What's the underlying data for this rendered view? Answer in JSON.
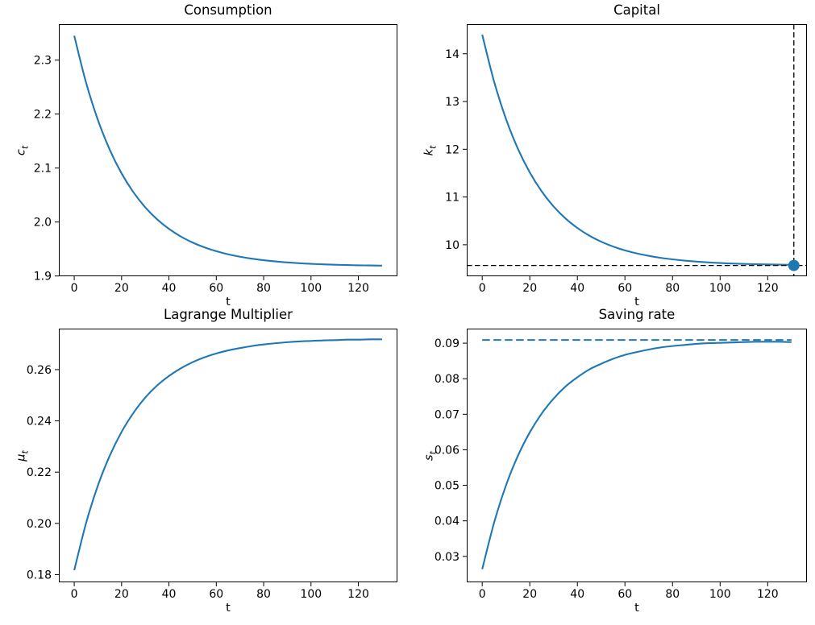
{
  "figure": {
    "accent_color": "#1f77b4",
    "annotation_line_color": "#000000",
    "background": "#ffffff"
  },
  "chart_data": [
    {
      "type": "line",
      "title": "Consumption",
      "xlabel": "t",
      "ylabel": "c_t",
      "ylabel_parts": {
        "main": "c",
        "sub": "t"
      },
      "xlim": [
        -6.5,
        136.5
      ],
      "ylim": [
        1.8995,
        2.3665
      ],
      "xtick_values": [
        0,
        20,
        40,
        60,
        80,
        100,
        120
      ],
      "xtick_labels": [
        "0",
        "20",
        "40",
        "60",
        "80",
        "100",
        "120"
      ],
      "ytick_values": [
        1.9,
        2.0,
        2.1,
        2.2,
        2.3
      ],
      "ytick_labels": [
        "1.9",
        "2.0",
        "2.1",
        "2.2",
        "2.3"
      ],
      "grid": false,
      "legend": null,
      "x": [
        0,
        5,
        10,
        15,
        20,
        25,
        30,
        35,
        40,
        45,
        50,
        55,
        60,
        65,
        70,
        75,
        80,
        85,
        90,
        95,
        100,
        105,
        110,
        115,
        120,
        125,
        130
      ],
      "series": [
        {
          "name": "consumption-path",
          "style": "solid",
          "color": "#1f77b4",
          "values": [
            2.345,
            2.2582,
            2.189,
            2.1339,
            2.09,
            2.0551,
            2.0272,
            2.005,
            1.9873,
            1.9732,
            1.962,
            1.9531,
            1.9459,
            1.9402,
            1.9357,
            1.9321,
            1.9293,
            1.927,
            1.9251,
            1.9237,
            1.9225,
            1.9216,
            1.9209,
            1.9203,
            1.9198,
            1.9195,
            1.9192
          ]
        }
      ],
      "annotations": {}
    },
    {
      "type": "line",
      "title": "Capital",
      "xlabel": "t",
      "ylabel": "k_t",
      "ylabel_parts": {
        "main": "k",
        "sub": "t"
      },
      "xlim": [
        -6.5,
        136.5
      ],
      "ylim": [
        9.34,
        14.62
      ],
      "xtick_values": [
        0,
        20,
        40,
        60,
        80,
        100,
        120
      ],
      "xtick_labels": [
        "0",
        "20",
        "40",
        "60",
        "80",
        "100",
        "120"
      ],
      "ytick_values": [
        10,
        11,
        12,
        13,
        14
      ],
      "ytick_labels": [
        "10",
        "11",
        "12",
        "13",
        "14"
      ],
      "grid": false,
      "legend": null,
      "x": [
        0,
        5,
        10,
        15,
        20,
        25,
        30,
        35,
        40,
        45,
        50,
        55,
        60,
        65,
        70,
        75,
        80,
        85,
        90,
        95,
        100,
        105,
        110,
        115,
        120,
        125,
        130
      ],
      "series": [
        {
          "name": "capital-path",
          "style": "solid",
          "color": "#1f77b4",
          "values": [
            14.4,
            13.417,
            12.634,
            12.011,
            11.514,
            11.118,
            10.802,
            10.551,
            10.351,
            10.191,
            10.064,
            9.963,
            9.882,
            9.818,
            9.767,
            9.726,
            9.694,
            9.668,
            9.647,
            9.63,
            9.617,
            9.607,
            9.599,
            9.592,
            9.587,
            9.583,
            9.579
          ]
        }
      ],
      "annotations": {
        "hline_y": 9.566,
        "vline_x": 131,
        "marker": {
          "x": 131,
          "y": 9.566,
          "r": 7
        }
      }
    },
    {
      "type": "line",
      "title": "Lagrange Multiplier",
      "xlabel": "t",
      "ylabel": "μ_t",
      "ylabel_parts": {
        "main": "μ",
        "sub": "t"
      },
      "xlim": [
        -6.5,
        136.5
      ],
      "ylim": [
        0.177,
        0.276
      ],
      "xtick_values": [
        0,
        20,
        40,
        60,
        80,
        100,
        120
      ],
      "xtick_labels": [
        "0",
        "20",
        "40",
        "60",
        "80",
        "100",
        "120"
      ],
      "ytick_values": [
        0.18,
        0.2,
        0.22,
        0.24,
        0.26
      ],
      "ytick_labels": [
        "0.18",
        "0.20",
        "0.22",
        "0.24",
        "0.26"
      ],
      "grid": false,
      "legend": null,
      "x": [
        0,
        5,
        10,
        15,
        20,
        25,
        30,
        35,
        40,
        45,
        50,
        55,
        60,
        65,
        70,
        75,
        80,
        85,
        90,
        95,
        100,
        105,
        110,
        115,
        120,
        125,
        130
      ],
      "series": [
        {
          "name": "lagrange-multiplier-path",
          "style": "solid",
          "color": "#1f77b4",
          "values": [
            0.1817,
            0.2001,
            0.2148,
            0.2264,
            0.2357,
            0.2431,
            0.2491,
            0.2538,
            0.2575,
            0.2605,
            0.2629,
            0.2648,
            0.2663,
            0.2675,
            0.2684,
            0.2692,
            0.2698,
            0.2703,
            0.2707,
            0.271,
            0.2712,
            0.2714,
            0.2715,
            0.2717,
            0.2717,
            0.2718,
            0.2718
          ]
        }
      ],
      "annotations": {}
    },
    {
      "type": "line",
      "title": "Saving rate",
      "xlabel": "t",
      "ylabel": "s_t",
      "ylabel_parts": {
        "main": "s",
        "sub": "t"
      },
      "xlim": [
        -6.5,
        136.5
      ],
      "ylim": [
        0.0227,
        0.0941
      ],
      "xtick_values": [
        0,
        20,
        40,
        60,
        80,
        100,
        120
      ],
      "xtick_labels": [
        "0",
        "20",
        "40",
        "60",
        "80",
        "100",
        "120"
      ],
      "ytick_values": [
        0.03,
        0.04,
        0.05,
        0.06,
        0.07,
        0.08,
        0.09
      ],
      "ytick_labels": [
        "0.03",
        "0.04",
        "0.05",
        "0.06",
        "0.07",
        "0.08",
        "0.09"
      ],
      "grid": false,
      "legend": null,
      "x": [
        0,
        5,
        10,
        15,
        20,
        25,
        30,
        35,
        40,
        45,
        50,
        55,
        60,
        65,
        70,
        75,
        80,
        85,
        90,
        95,
        100,
        105,
        110,
        115,
        120,
        125,
        130
      ],
      "series": [
        {
          "name": "saving-rate-path",
          "style": "solid",
          "color": "#1f77b4",
          "values": [
            0.0264,
            0.0395,
            0.05,
            0.0583,
            0.0649,
            0.0702,
            0.0744,
            0.0778,
            0.0804,
            0.0826,
            0.0842,
            0.0856,
            0.0867,
            0.0875,
            0.0882,
            0.0888,
            0.0892,
            0.0895,
            0.0898,
            0.09,
            0.0901,
            0.0902,
            0.0903,
            0.0904,
            0.0904,
            0.0904,
            0.0903
          ]
        },
        {
          "name": "saving-rate-steady-state-dashed",
          "style": "dashed",
          "color": "#1f77b4",
          "x": [
            0,
            130
          ],
          "values": [
            0.0909,
            0.0909
          ]
        }
      ],
      "annotations": {}
    }
  ]
}
